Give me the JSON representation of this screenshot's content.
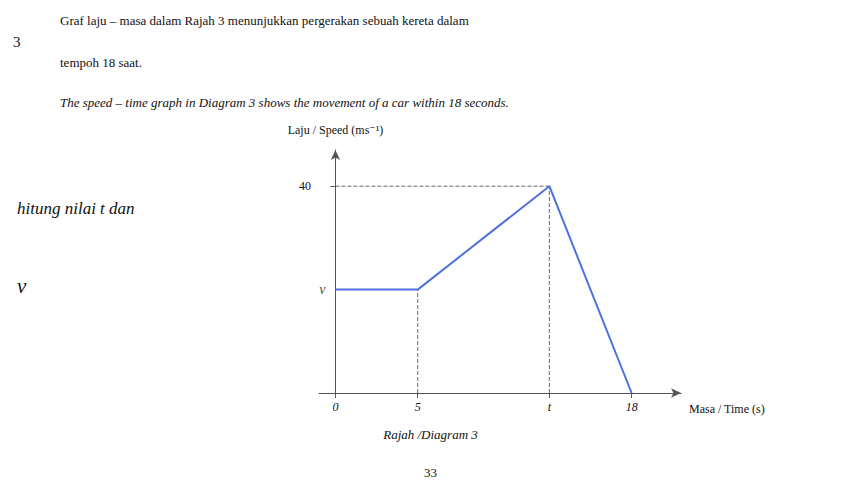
{
  "chart_data": {
    "type": "line",
    "title": [
      "Graf laju – masa dalam Rajah 3 menunjukkan pergerakan sebuah kereta dalam",
      "tempoh 18 saat."
    ],
    "subtitle": "The speed – time graph in Diagram 3 shows the movement of a car within 18 seconds.",
    "xlabel": "Masa / Time (s)",
    "ylabel": "Laju / Speed (ms⁻¹)",
    "x": [
      0,
      5,
      13,
      18
    ],
    "values": [
      20,
      20,
      40,
      0
    ],
    "xlim": [
      -1,
      21
    ],
    "xticks": [
      0,
      5,
      {
        "value": 13,
        "label": "t"
      },
      18
    ],
    "ylim": [
      0,
      47
    ],
    "yticks": [
      40
    ],
    "grid": false,
    "reference_lines": [
      {
        "x": [
          0,
          13
        ],
        "y": [
          40,
          40
        ],
        "line_style": "dashed"
      },
      {
        "x": [
          5,
          5
        ],
        "y": [
          0,
          20
        ],
        "line_style": "dashed"
      },
      {
        "x": [
          13,
          13
        ],
        "y": [
          0,
          40
        ],
        "line_style": "dashed"
      }
    ],
    "annotations": [
      {
        "text": "v",
        "y": 20
      },
      {
        "text": "3"
      },
      {
        "text": "hitung nilai t dan"
      },
      {
        "text": "v"
      },
      {
        "text": "Rajah /Diagram 3"
      },
      {
        "text": "33"
      }
    ]
  }
}
